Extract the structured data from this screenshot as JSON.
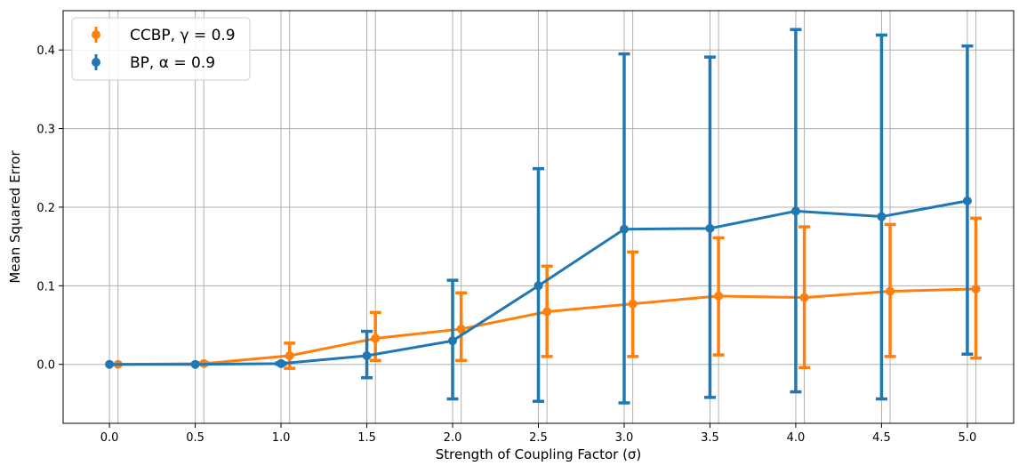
{
  "chart_data": {
    "type": "line",
    "title": "",
    "xlabel": "Strength of Coupling Factor (σ)",
    "ylabel": "Mean Squared Error",
    "xlim": [
      -0.27,
      5.27
    ],
    "ylim": [
      -0.075,
      0.45
    ],
    "xticks": [
      "0.0",
      "0.5",
      "1.0",
      "1.5",
      "2.0",
      "2.5",
      "3.0",
      "3.5",
      "4.0",
      "4.5",
      "5.0"
    ],
    "yticks": [
      "0.0",
      "0.1",
      "0.2",
      "0.3",
      "0.4"
    ],
    "grid": true,
    "legend_position": "top-left",
    "series": [
      {
        "name": "CCBP, γ = 0.9",
        "color": "#ff7f0e",
        "x": [
          0.05,
          0.55,
          1.05,
          1.55,
          2.05,
          2.55,
          3.05,
          3.55,
          4.05,
          4.55,
          5.05
        ],
        "y": [
          0.0,
          0.001,
          0.011,
          0.033,
          0.045,
          0.067,
          0.077,
          0.087,
          0.085,
          0.093,
          0.096
        ],
        "error_low": [
          0.0,
          0.0,
          -0.005,
          0.005,
          0.005,
          0.01,
          0.01,
          0.012,
          -0.004,
          0.01,
          0.008
        ],
        "error_high": [
          0.0,
          0.002,
          0.027,
          0.066,
          0.091,
          0.125,
          0.143,
          0.161,
          0.175,
          0.178,
          0.186
        ]
      },
      {
        "name": "BP, α = 0.9",
        "color": "#1f77b4",
        "x": [
          0.0,
          0.5,
          1.0,
          1.5,
          2.0,
          2.5,
          3.0,
          3.5,
          4.0,
          4.5,
          5.0
        ],
        "y": [
          0.0,
          0.0,
          0.001,
          0.011,
          0.03,
          0.1,
          0.172,
          0.173,
          0.195,
          0.188,
          0.208
        ],
        "error_low": [
          0.0,
          0.0,
          0.0,
          -0.017,
          -0.044,
          -0.047,
          -0.049,
          -0.042,
          -0.035,
          -0.044,
          0.013
        ],
        "error_high": [
          0.0,
          0.0,
          0.002,
          0.042,
          0.107,
          0.249,
          0.395,
          0.391,
          0.426,
          0.419,
          0.405
        ]
      }
    ]
  }
}
